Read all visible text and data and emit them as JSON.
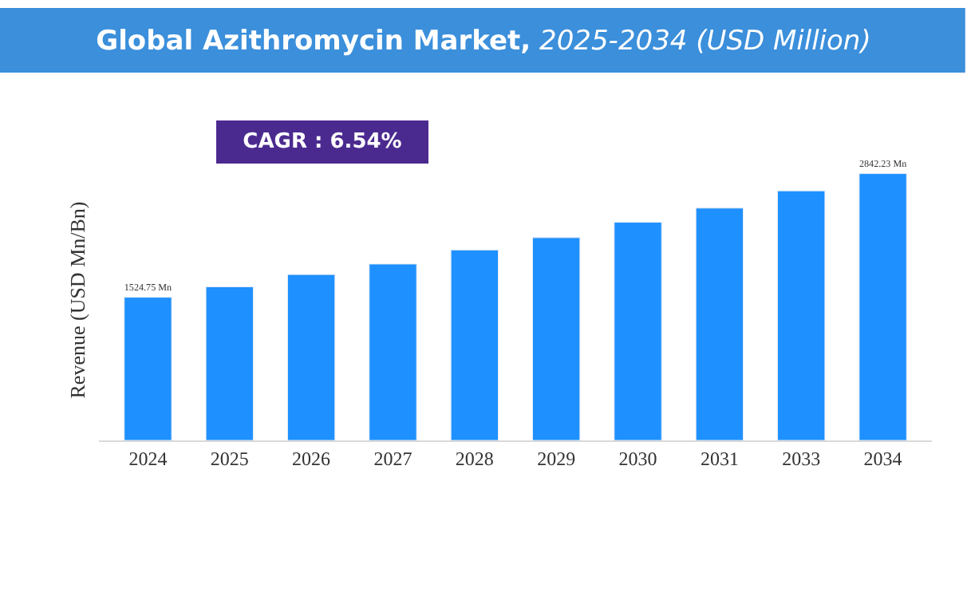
{
  "chart_data": {
    "type": "bar",
    "title": "Global Azithromycin Market,",
    "subtitle": "2025-2034 (USD Million)",
    "ylabel": "Revenue (USD Mn/Bn)",
    "categories": [
      "2024",
      "2025",
      "2026",
      "2027",
      "2028",
      "2029",
      "2030",
      "2031",
      "2033",
      "2034"
    ],
    "series": [
      {
        "color": "#1e90ff",
        "values": [
          1524.75,
          1636,
          1767,
          1879,
          2029,
          2160,
          2324,
          2475,
          2659,
          2842.23
        ],
        "value_labels": [
          "1524.75 Mn",
          null,
          null,
          null,
          null,
          null,
          null,
          null,
          null,
          "2842.23 Mn"
        ]
      }
    ],
    "tick_labels": "x",
    "annotations": [
      "CAGR : 6.54%"
    ]
  }
}
